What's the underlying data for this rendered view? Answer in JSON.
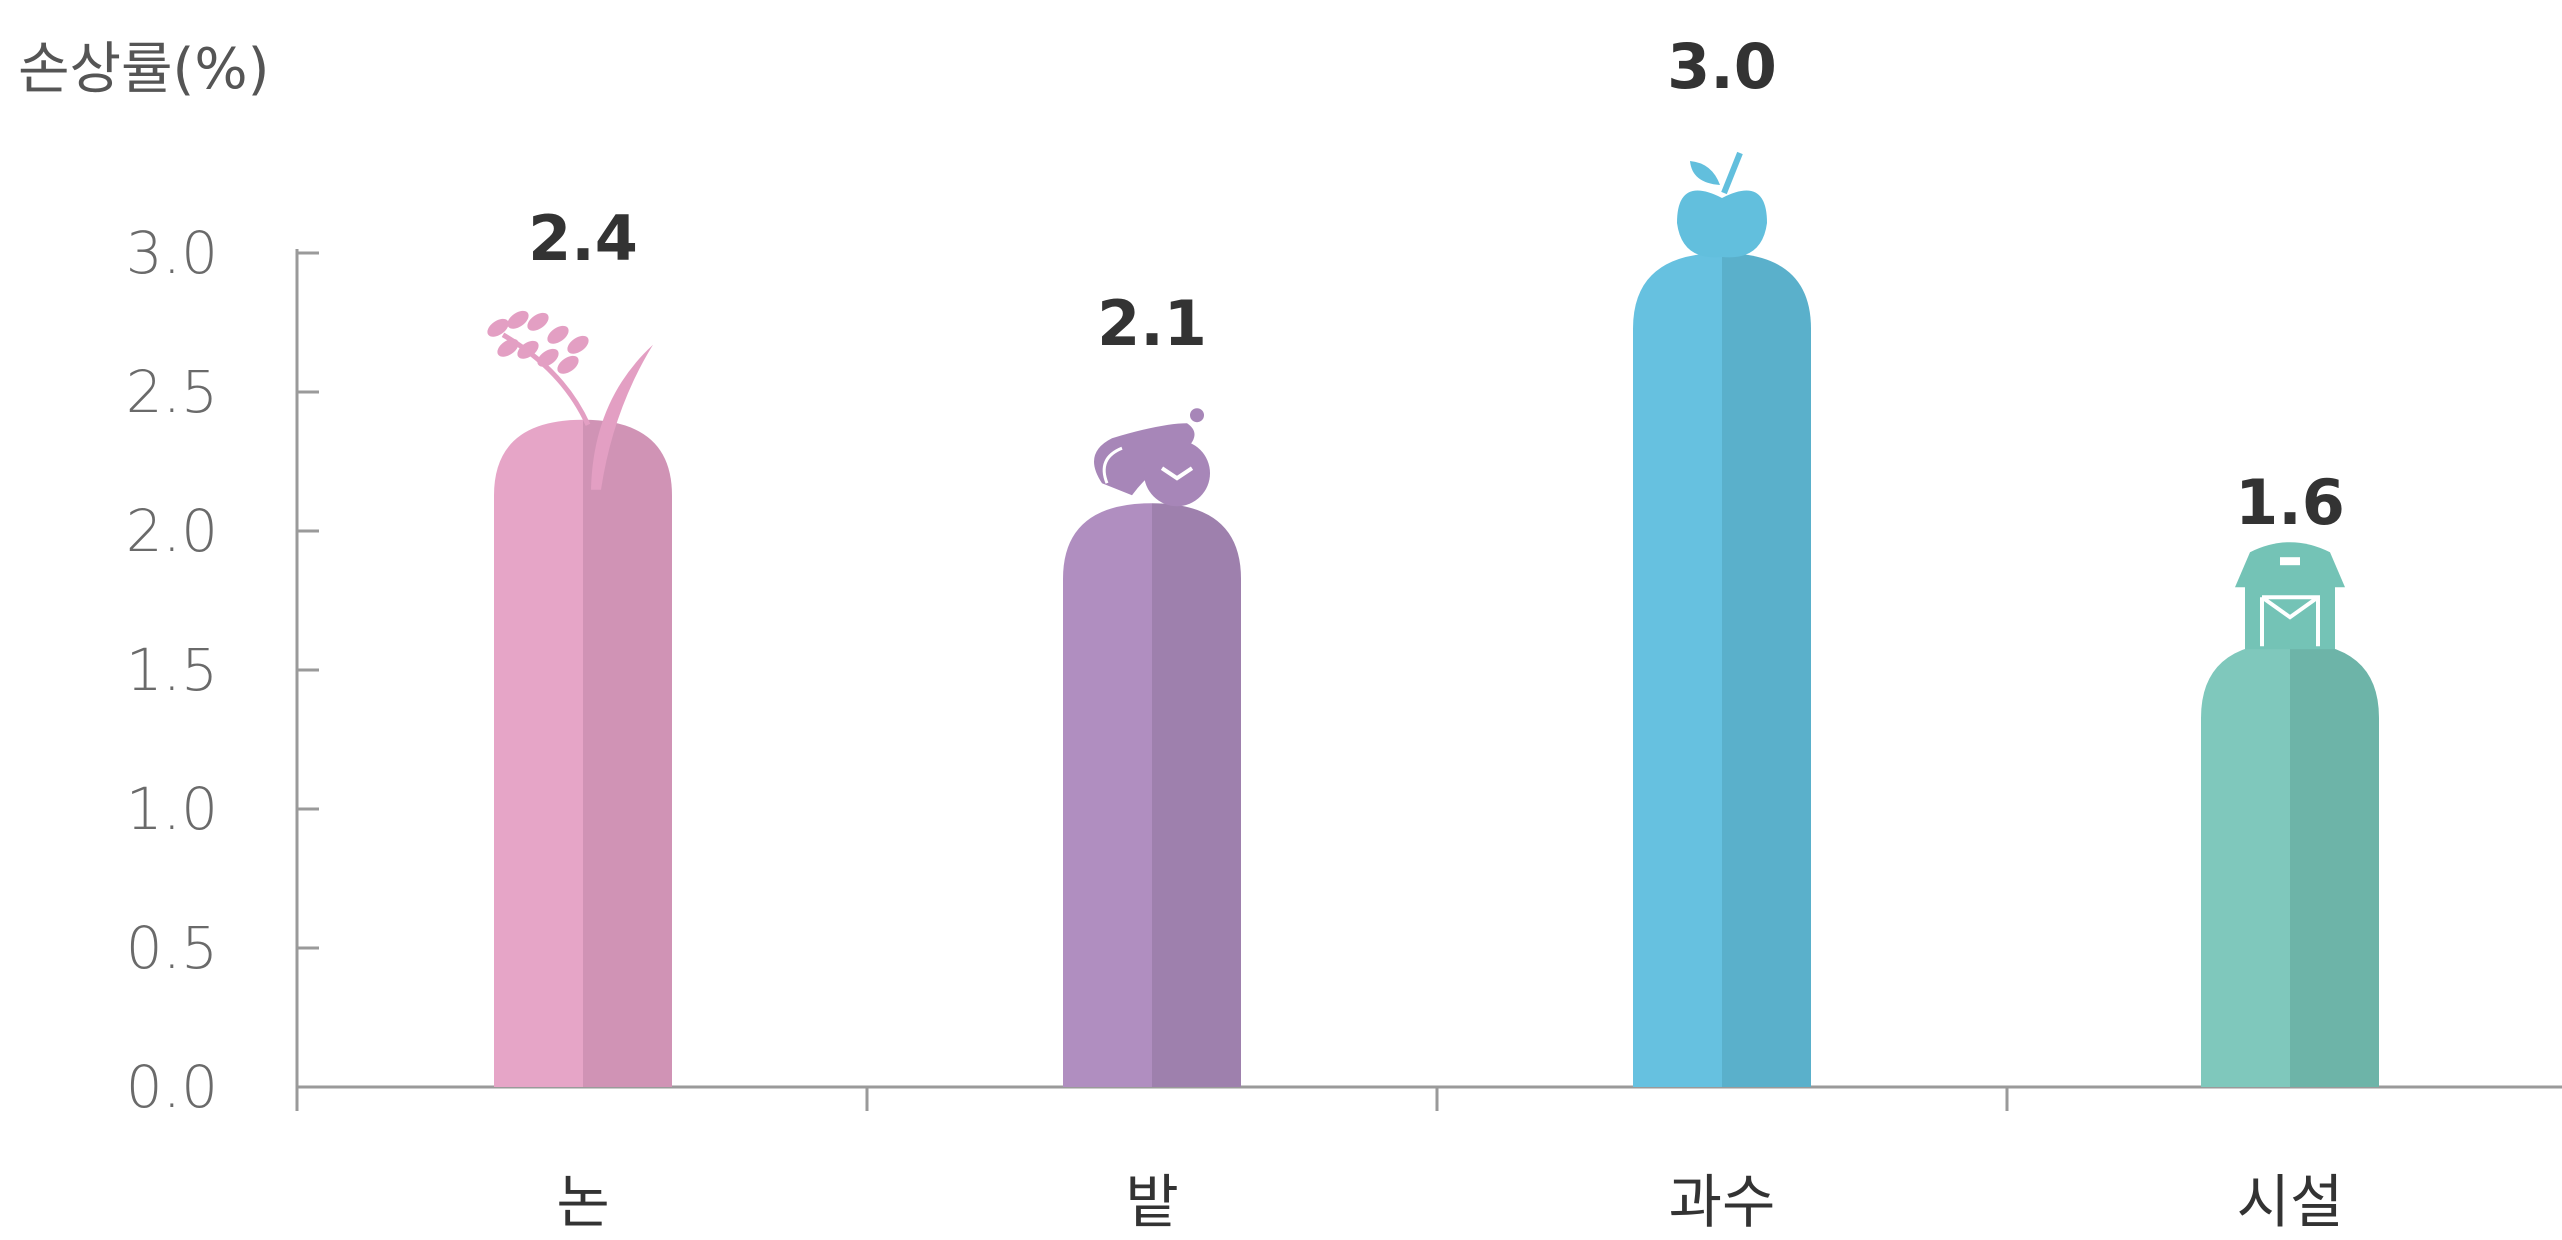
{
  "chart_data": {
    "type": "bar",
    "title": "",
    "ylabel": "손상률(%)",
    "xlabel": "",
    "ylim": [
      0,
      3.0
    ],
    "yticks": [
      "0.0",
      "0.5",
      "1.0",
      "1.5",
      "2.0",
      "2.5",
      "3.0"
    ],
    "categories": [
      "논",
      "밭",
      "과수",
      "시설"
    ],
    "values": [
      2.4,
      2.1,
      3.0,
      1.6
    ],
    "value_labels": [
      "2.4",
      "2.1",
      "3.0",
      "1.6"
    ],
    "colors": [
      {
        "light": "#e6a5c7",
        "dark": "#d093b5"
      },
      {
        "light": "#b08ec0",
        "dark": "#9e80ad"
      },
      {
        "light": "#66c1e0",
        "dark": "#5ab0cb"
      },
      {
        "light": "#7fc8bc",
        "dark": "#6db4a8"
      }
    ],
    "icons": [
      "rice-plant-icon",
      "eggplant-icon",
      "apple-icon",
      "greenhouse-icon"
    ],
    "grid": false,
    "legend": "none"
  }
}
